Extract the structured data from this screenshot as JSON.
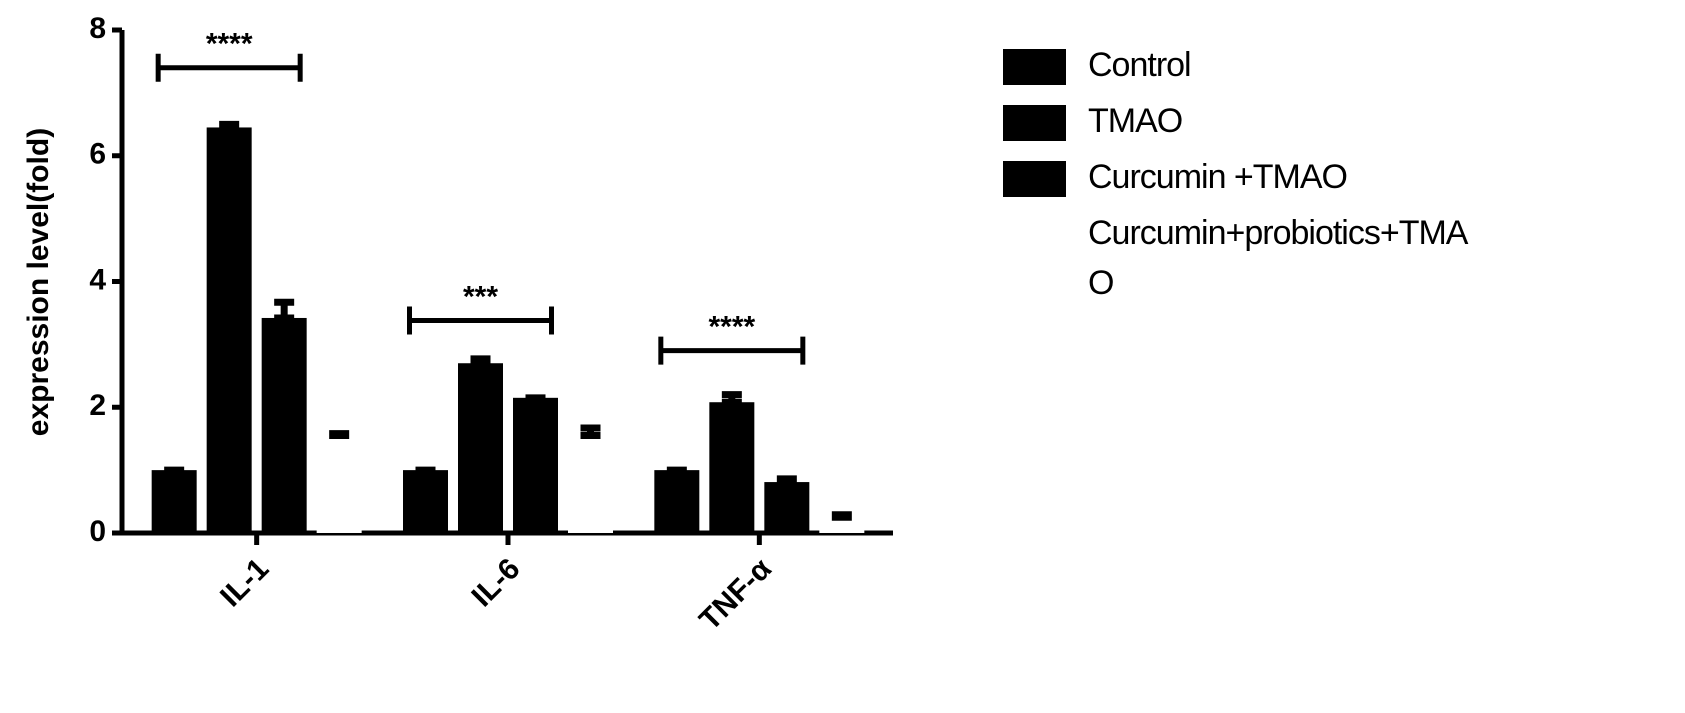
{
  "chart_data": {
    "type": "bar",
    "y_label": "expression level(fold)",
    "categories": [
      "IL-1",
      "IL-6",
      "TNF-α"
    ],
    "series": [
      {
        "name": "Control",
        "color": "#000000",
        "values": [
          1,
          1,
          1
        ],
        "errors": [
          0,
          0,
          0
        ]
      },
      {
        "name": "TMAO",
        "color": "#000000",
        "values": [
          6.45,
          2.7,
          2.08
        ],
        "errors": [
          0.05,
          0.07,
          0.12
        ]
      },
      {
        "name": "Curcumin +TMAO",
        "color": "#000000",
        "values": [
          3.42,
          2.15,
          0.81
        ],
        "errors": [
          0.25,
          0,
          0.05
        ]
      },
      {
        "name": "Curcumin+probiotics+TMAO",
        "color": "#ffffff",
        "values": [
          1.55,
          1.55,
          0.25
        ],
        "errors": [
          0.03,
          0.12,
          0.04
        ]
      }
    ],
    "annotations": [
      {
        "text": "****",
        "category": 0,
        "y": 7.4
      },
      {
        "text": "***",
        "category": 1,
        "y": 3.38
      },
      {
        "text": "****",
        "category": 2,
        "y": 2.9
      }
    ],
    "ylim": [
      0,
      8
    ],
    "yticks": [
      0,
      2,
      4,
      6,
      8
    ]
  }
}
